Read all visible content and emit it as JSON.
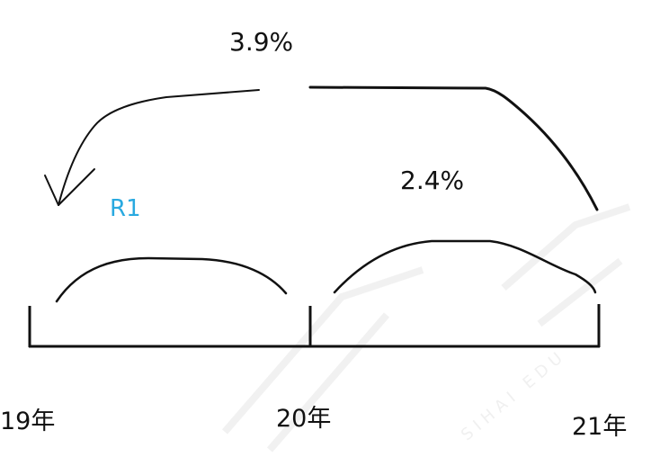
{
  "labels": {
    "rate_overall": "3.9%",
    "rate_second": "2.4%",
    "annotation": "R1",
    "year_start": "19年",
    "year_mid": "20年",
    "year_end": "21年"
  },
  "colors": {
    "stroke": "#111111",
    "text": "#111111",
    "annotation": "#29a9e0",
    "watermark": "#efefef"
  },
  "watermark": {
    "text": "SIHAI EDU"
  }
}
